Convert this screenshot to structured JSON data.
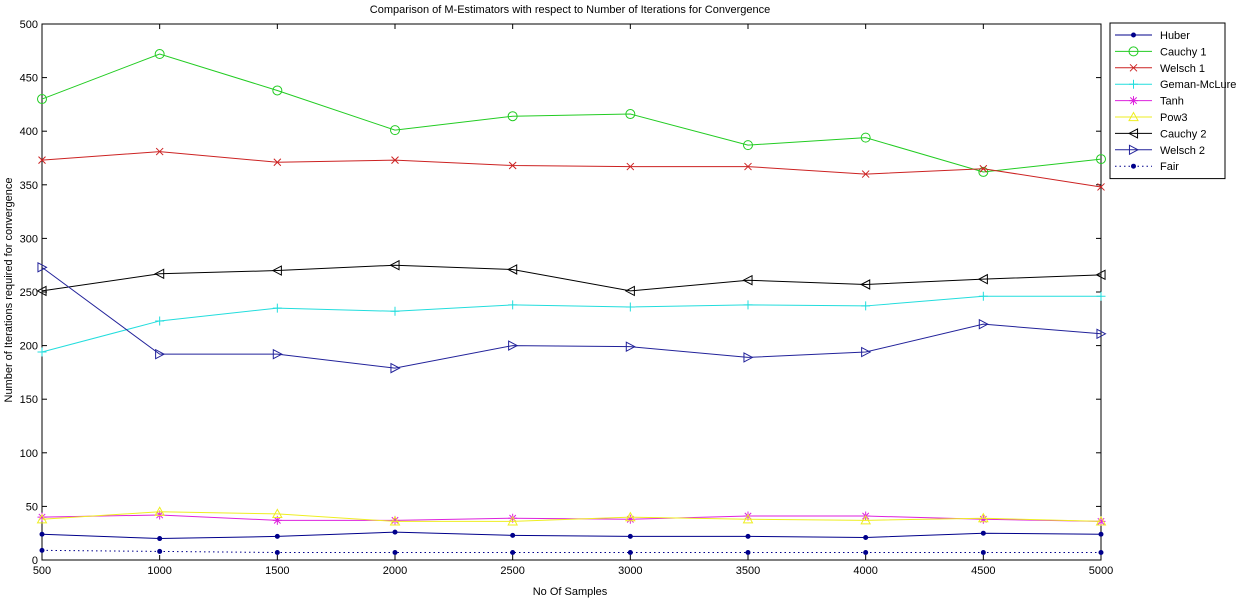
{
  "chart_data": {
    "type": "line",
    "title": "Comparison of M-Estimators with respect to Number of Iterations for Convergence",
    "xlabel": "No Of Samples",
    "ylabel": "Number of Iterations required for convergence",
    "xlim": [
      500,
      5000
    ],
    "ylim": [
      0,
      500
    ],
    "x_ticks": [
      500,
      1000,
      1500,
      2000,
      2500,
      3000,
      3500,
      4000,
      4500,
      5000
    ],
    "y_ticks": [
      0,
      50,
      100,
      150,
      200,
      250,
      300,
      350,
      400,
      450,
      500
    ],
    "grid": false,
    "legend_position": "outside-right-top",
    "x": [
      500,
      1000,
      1500,
      2000,
      2500,
      3000,
      3500,
      4000,
      4500,
      5000
    ],
    "series": [
      {
        "name": "Huber",
        "color": "#00008b",
        "marker": "dot",
        "line": "solid",
        "values": [
          24,
          20,
          22,
          26,
          23,
          22,
          22,
          21,
          25,
          24
        ]
      },
      {
        "name": "Cauchy 1",
        "color": "#22cc22",
        "marker": "circle",
        "line": "solid",
        "values": [
          430,
          472,
          438,
          401,
          414,
          416,
          387,
          394,
          362,
          374
        ]
      },
      {
        "name": "Welsch 1",
        "color": "#cc2222",
        "marker": "x",
        "line": "solid",
        "values": [
          373,
          381,
          371,
          373,
          368,
          367,
          367,
          360,
          365,
          348
        ]
      },
      {
        "name": "Geman-McLure",
        "color": "#22dddd",
        "marker": "plus",
        "line": "solid",
        "values": [
          194,
          223,
          235,
          232,
          238,
          236,
          238,
          237,
          246,
          246
        ]
      },
      {
        "name": "Tanh",
        "color": "#dd22dd",
        "marker": "star",
        "line": "solid",
        "values": [
          40,
          42,
          37,
          37,
          39,
          38,
          41,
          41,
          38,
          36
        ]
      },
      {
        "name": "Pow3",
        "color": "#eeee22",
        "marker": "triangle-up",
        "line": "solid",
        "values": [
          38,
          45,
          43,
          36,
          36,
          40,
          38,
          37,
          39,
          36
        ]
      },
      {
        "name": "Cauchy 2",
        "color": "#000000",
        "marker": "triangle-left",
        "line": "solid",
        "values": [
          251,
          267,
          270,
          275,
          271,
          251,
          261,
          257,
          262,
          266
        ]
      },
      {
        "name": "Welsch 2",
        "color": "#22229a",
        "marker": "triangle-right",
        "line": "solid",
        "values": [
          273,
          192,
          192,
          179,
          200,
          199,
          189,
          194,
          220,
          211
        ]
      },
      {
        "name": "Fair",
        "color": "#00008b",
        "marker": "dot",
        "line": "dotted",
        "values": [
          9,
          8,
          7,
          7,
          7,
          7,
          7,
          7,
          7,
          7
        ]
      }
    ]
  }
}
